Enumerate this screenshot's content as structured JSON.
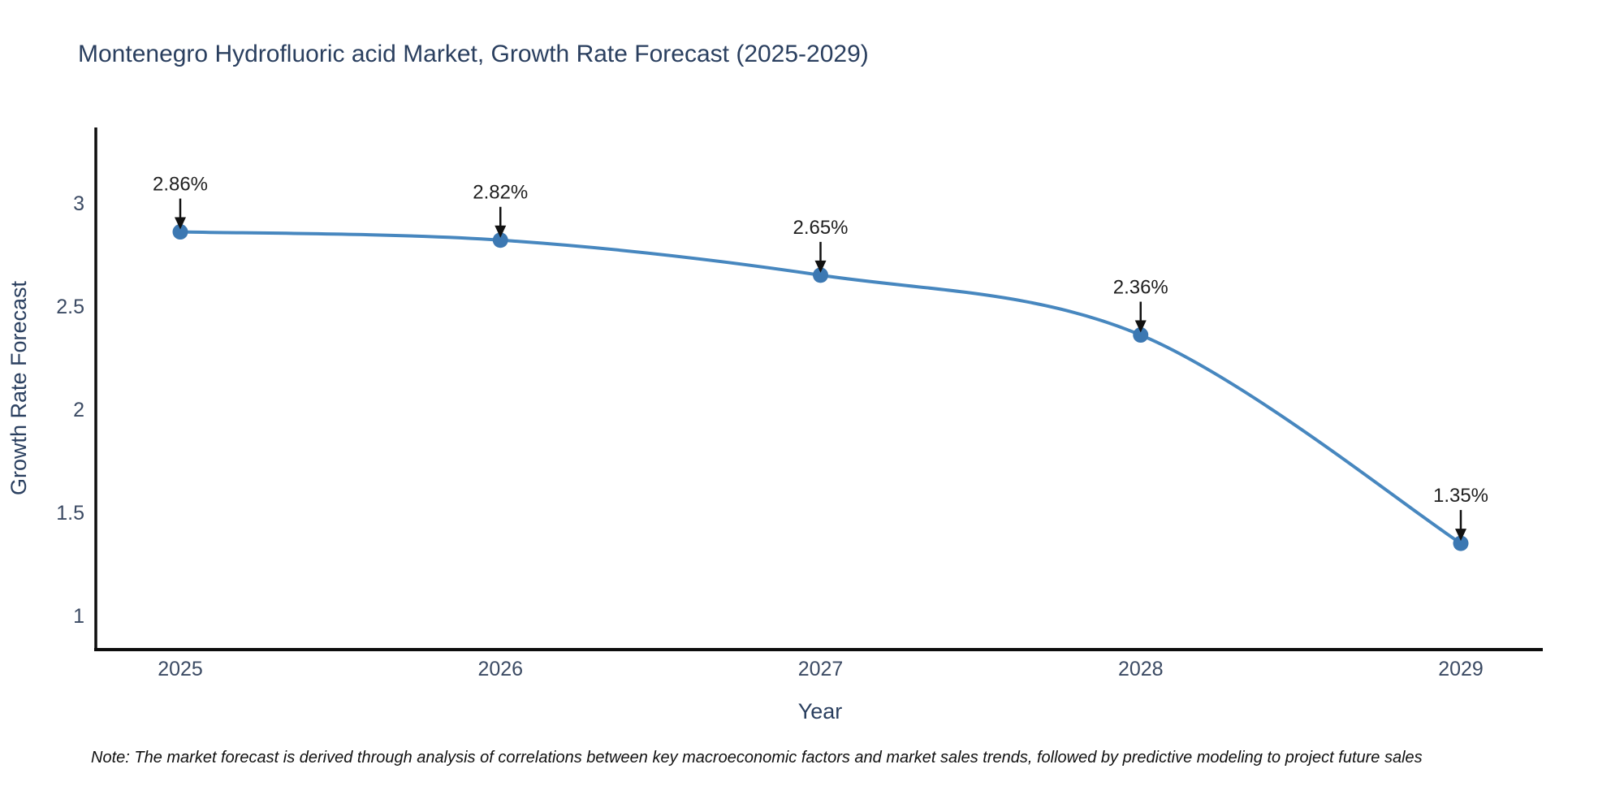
{
  "title": "Montenegro Hydrofluoric acid Market, Growth Rate Forecast (2025-2029)",
  "note": "Note: The market forecast is derived through analysis of correlations between key macroeconomic factors and market sales trends, followed by predictive modeling to project future sales",
  "chart_data": {
    "type": "line",
    "line_shape": "spline",
    "title": "Montenegro Hydrofluoric acid Market, Growth Rate Forecast (2025-2029)",
    "xlabel": "Year",
    "ylabel": "Growth Rate Forecast",
    "categories": [
      "2025",
      "2026",
      "2027",
      "2028",
      "2029"
    ],
    "values": [
      2.86,
      2.82,
      2.65,
      2.36,
      1.35
    ],
    "point_labels": [
      "2.86%",
      "2.82%",
      "2.65%",
      "2.36%",
      "1.35%"
    ],
    "yticks": [
      3,
      2.5,
      2,
      1.5,
      1
    ],
    "ytick_labels": [
      "3",
      "2.5",
      "2",
      "1.5",
      "1"
    ],
    "ylim": [
      0.84,
      3.36
    ],
    "grid": false,
    "legend": "none",
    "annotation_style": "value label above point with downward black arrow",
    "colors": {
      "line": "#4787bf",
      "marker": "#3c78b2",
      "arrow": "#111111",
      "axis_line": "#0d0d0d",
      "title_text": "#2a3f5f",
      "tick_text": "#3b4a63",
      "note_text": "#111111",
      "background": "#ffffff"
    }
  }
}
